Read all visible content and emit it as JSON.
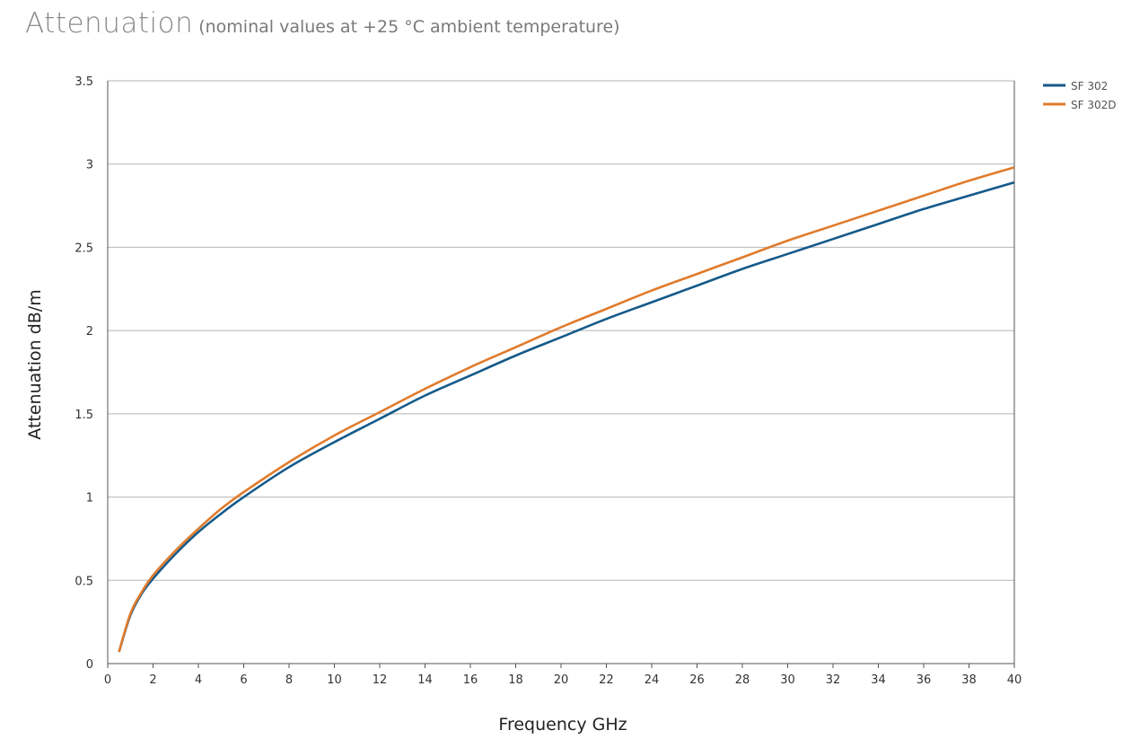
{
  "header": {
    "title": "Attenuation",
    "subtitle": "(nominal values at +25 °C ambient temperature)"
  },
  "chart_data": {
    "type": "line",
    "xlabel": "Frequency GHz",
    "ylabel": "Attenuation dB/m",
    "xlim": [
      0,
      40
    ],
    "ylim": [
      0,
      3.5
    ],
    "xticks": [
      0,
      2,
      4,
      6,
      8,
      10,
      12,
      14,
      16,
      18,
      20,
      22,
      24,
      26,
      28,
      30,
      32,
      34,
      36,
      38,
      40
    ],
    "xtick_labels": [
      "0",
      "2",
      "4",
      "6",
      "8",
      "10",
      "12",
      "14",
      "16",
      "18",
      "20",
      "22",
      "24",
      "26",
      "28",
      "30",
      "32",
      "34",
      "36",
      "38",
      "40"
    ],
    "yticks": [
      0,
      0.5,
      1,
      1.5,
      2,
      2.5,
      3,
      3.5
    ],
    "ytick_labels": [
      "0",
      "0.5",
      "1",
      "1.5",
      "2",
      "2.5",
      "3",
      "3.5"
    ],
    "grid": "horizontal",
    "legend_position": "top-right outside",
    "series": [
      {
        "name": "SF 302",
        "color": "#155a8a",
        "x": [
          0.5,
          1,
          1.5,
          2,
          3,
          4,
          5,
          6,
          8,
          10,
          12,
          14,
          16,
          18,
          20,
          22,
          24,
          26,
          28,
          30,
          32,
          34,
          36,
          38,
          40
        ],
        "y": [
          0.07,
          0.29,
          0.42,
          0.51,
          0.66,
          0.79,
          0.9,
          1.0,
          1.18,
          1.33,
          1.47,
          1.61,
          1.73,
          1.85,
          1.96,
          2.07,
          2.17,
          2.27,
          2.37,
          2.46,
          2.55,
          2.64,
          2.73,
          2.81,
          2.89
        ]
      },
      {
        "name": "SF 302D",
        "color": "#e07b2c",
        "x": [
          0.5,
          1,
          1.5,
          2,
          3,
          4,
          5,
          6,
          8,
          10,
          12,
          14,
          16,
          18,
          20,
          22,
          24,
          26,
          28,
          30,
          32,
          34,
          36,
          38,
          40
        ],
        "y": [
          0.07,
          0.3,
          0.43,
          0.53,
          0.68,
          0.81,
          0.93,
          1.03,
          1.21,
          1.37,
          1.51,
          1.65,
          1.78,
          1.9,
          2.02,
          2.13,
          2.24,
          2.34,
          2.44,
          2.54,
          2.63,
          2.72,
          2.81,
          2.9,
          2.98
        ]
      }
    ]
  }
}
